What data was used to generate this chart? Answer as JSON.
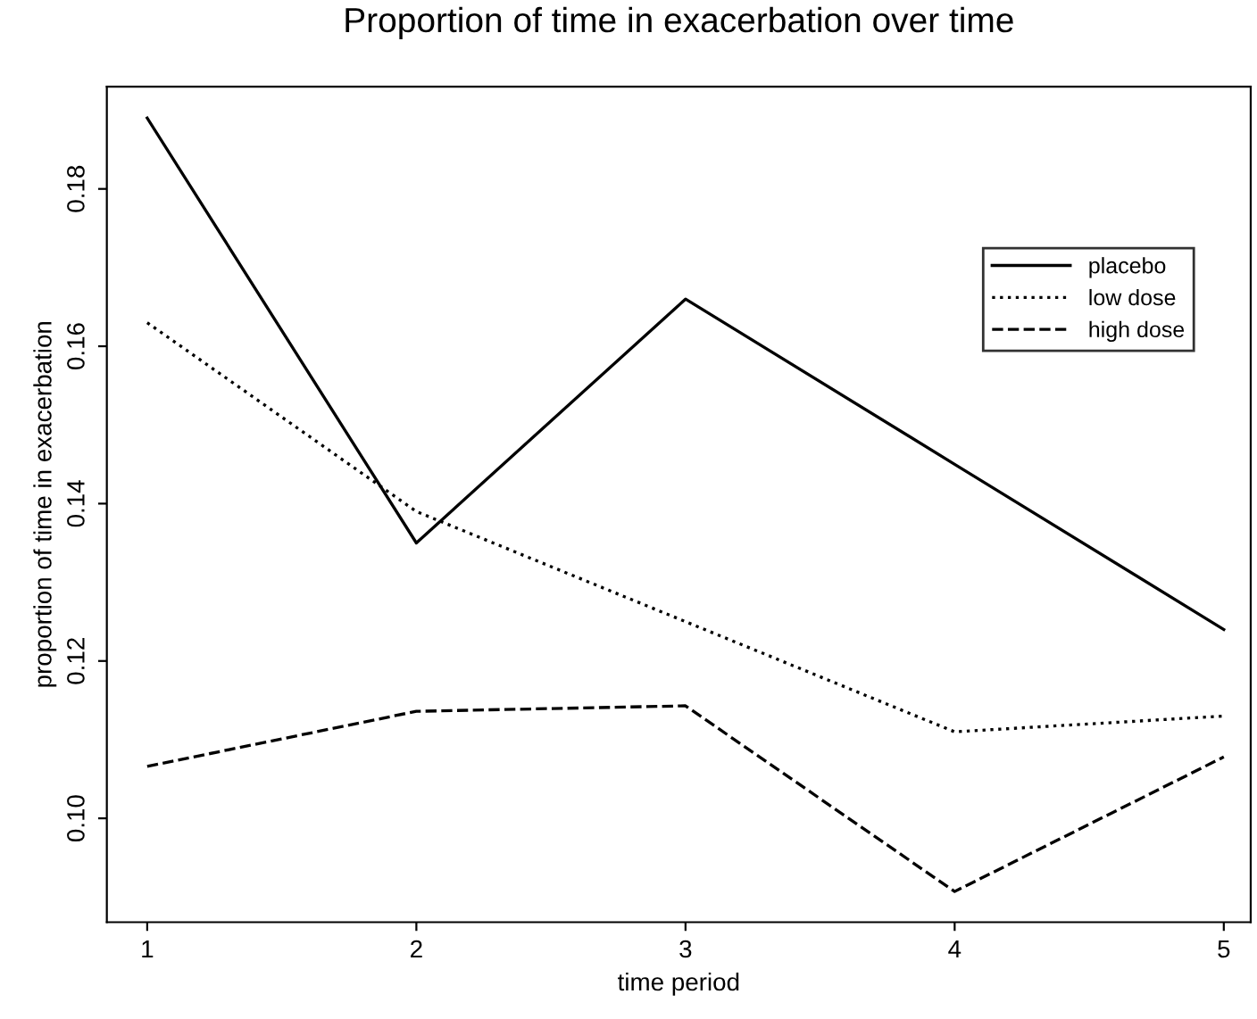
{
  "chart_data": {
    "type": "line",
    "title": "Proportion of time in exacerbation over time",
    "xlabel": "time period",
    "ylabel": "proportion of time in exacerbation",
    "x": [
      1,
      2,
      3,
      4,
      5
    ],
    "series": [
      {
        "name": "placebo",
        "color": "#000000",
        "line_style": "solid",
        "values": [
          0.189,
          0.135,
          0.166,
          0.145,
          0.124
        ]
      },
      {
        "name": "low dose",
        "color": "#000000",
        "line_style": "dotted",
        "values": [
          0.163,
          0.139,
          0.125,
          0.111,
          0.113
        ]
      },
      {
        "name": "high dose",
        "color": "#000000",
        "line_style": "dashed",
        "values": [
          0.1066,
          0.1136,
          0.1143,
          0.0907,
          0.1078
        ]
      }
    ],
    "xlim": [
      0.85,
      5.1
    ],
    "xticks": [
      1,
      2,
      3,
      4,
      5
    ],
    "ylim": [
      0.0868,
      0.193
    ],
    "yticks": [
      {
        "value": 0.1,
        "label": "0.10"
      },
      {
        "value": 0.12,
        "label": "0.12"
      },
      {
        "value": 0.14,
        "label": "0.14"
      },
      {
        "value": 0.16,
        "label": "0.16"
      },
      {
        "value": 0.18,
        "label": "0.18"
      }
    ],
    "legend": "upper right",
    "grid": false
  }
}
